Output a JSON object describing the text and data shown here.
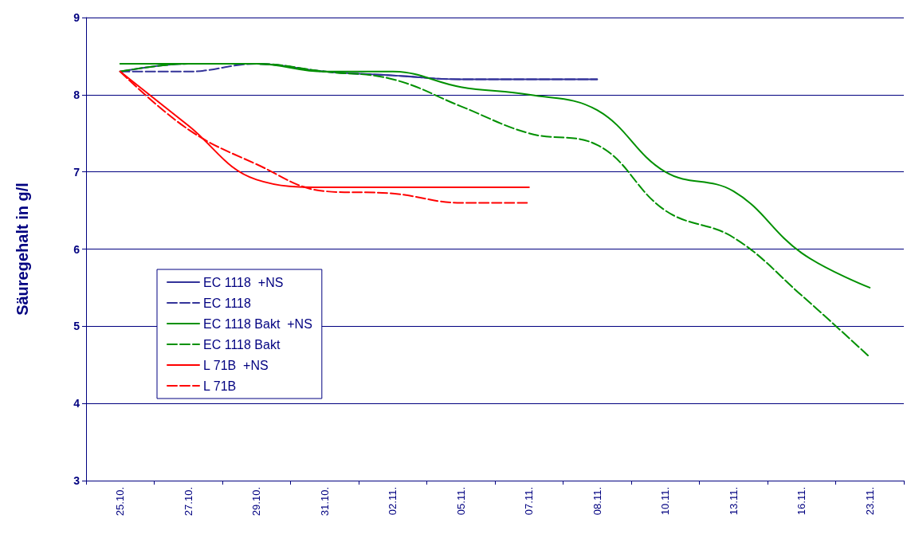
{
  "chart_data": {
    "type": "line",
    "ylabel": "Säuregehalt in g/l",
    "categories": [
      "25.10.",
      "27.10.",
      "29.10.",
      "31.10.",
      "02.11.",
      "05.11.",
      "07.11.",
      "08.11.",
      "10.11.",
      "13.11.",
      "16.11.",
      "23.11."
    ],
    "ylim": [
      3,
      9
    ],
    "yticks": [
      3,
      4,
      5,
      6,
      7,
      8,
      9
    ],
    "grid": "y",
    "legend": "left",
    "marker": "none",
    "series": [
      {
        "name": "EC 1118  +NS",
        "color": "#333399",
        "line_style": "solid",
        "values": [
          8.3,
          8.4,
          8.4,
          8.3,
          8.25,
          8.2,
          8.2,
          8.2,
          null,
          null,
          null,
          null
        ]
      },
      {
        "name": "EC 1118",
        "color": "#333399",
        "line_style": "dashed",
        "values": [
          8.3,
          8.3,
          8.4,
          8.3,
          8.25,
          8.2,
          8.2,
          8.2,
          null,
          null,
          null,
          null
        ]
      },
      {
        "name": "EC 1118 Bakt  +NS",
        "color": "#009000",
        "line_style": "solid",
        "values": [
          8.4,
          8.4,
          8.4,
          8.3,
          8.3,
          8.1,
          8.0,
          7.8,
          7.0,
          6.75,
          5.95,
          5.5
        ]
      },
      {
        "name": "EC 1118 Bakt",
        "color": "#009000",
        "line_style": "dashed",
        "values": [
          8.3,
          8.4,
          8.4,
          8.3,
          8.2,
          7.85,
          7.5,
          7.35,
          6.5,
          6.15,
          5.4,
          4.6
        ]
      },
      {
        "name": "L 71B  +NS",
        "color": "#ff0000",
        "line_style": "solid",
        "values": [
          8.3,
          7.6,
          6.9,
          6.8,
          6.8,
          6.8,
          6.8,
          null,
          null,
          null,
          null,
          null
        ]
      },
      {
        "name": "L 71B",
        "color": "#ff0000",
        "line_style": "dashed",
        "values": [
          8.3,
          7.55,
          7.1,
          6.75,
          6.72,
          6.6,
          6.6,
          null,
          null,
          null,
          null,
          null
        ]
      }
    ]
  }
}
